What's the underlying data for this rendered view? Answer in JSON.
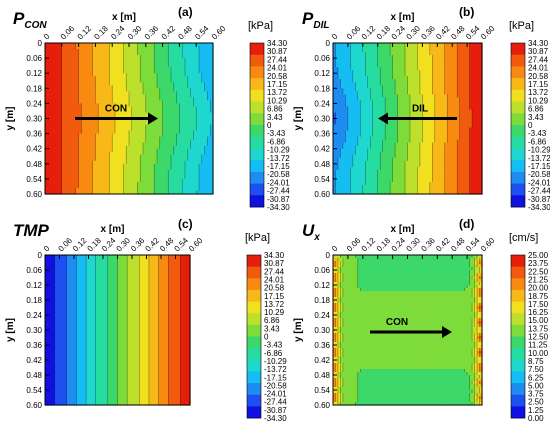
{
  "palette": [
    "#1010e0",
    "#1e4ff0",
    "#1f8cf2",
    "#16bdf2",
    "#1ed8d0",
    "#26dca0",
    "#3cd86a",
    "#7ddc3a",
    "#bde02c",
    "#f0e020",
    "#f8b818",
    "#f88a12",
    "#f25a10",
    "#e61e0c"
  ],
  "chart_data": [
    {
      "type": "heatmap",
      "title_main": "P",
      "title_sub": "CON",
      "panel_label": "(a)",
      "xlabel": "x [m]",
      "ylabel": "y [m]",
      "unit": "[kPa]",
      "x_ticks": [
        "0",
        "0.06",
        "0.12",
        "0.18",
        "0.24",
        "0.30",
        "0.36",
        "0.42",
        "0.48",
        "0.54",
        "0.60"
      ],
      "y_ticks": [
        "0",
        "0.06",
        "0.12",
        "0.18",
        "0.24",
        "0.30",
        "0.36",
        "0.42",
        "0.48",
        "0.54",
        "0.60"
      ],
      "xlim": [
        0,
        0.6
      ],
      "ylim": [
        0,
        0.6
      ],
      "colorbar_ticks": [
        "34.30",
        "30.87",
        "27.44",
        "24.01",
        "20.58",
        "17.15",
        "13.72",
        "10.29",
        "6.86",
        "3.43",
        "0",
        "-3.43",
        "-6.86",
        "-10.29",
        "-13.72",
        "-17.15",
        "-20.58",
        "-24.01",
        "-27.44",
        "-30.87",
        "-34.30"
      ],
      "clim": [
        -34.3,
        34.3
      ],
      "field": "pressure decreasing from about 34 kPa at x = 0 to about -20 kPa at x = 0.60",
      "arrow_label": "CON"
    },
    {
      "type": "heatmap",
      "title_main": "P",
      "title_sub": "DIL",
      "panel_label": "(b)",
      "xlabel": "x [m]",
      "ylabel": "y [m]",
      "unit": "[kPa]",
      "x_ticks": [
        "0",
        "0.06",
        "0.12",
        "0.18",
        "0.24",
        "0.30",
        "0.36",
        "0.42",
        "0.48",
        "0.54",
        "0.60"
      ],
      "y_ticks": [
        "0",
        "0.06",
        "0.12",
        "0.18",
        "0.24",
        "0.30",
        "0.36",
        "0.42",
        "0.48",
        "0.54",
        "0.60"
      ],
      "xlim": [
        0,
        0.6
      ],
      "ylim": [
        0,
        0.6
      ],
      "colorbar_ticks": [
        "34.30",
        "30.87",
        "27.44",
        "24.01",
        "20.58",
        "17.15",
        "13.72",
        "10.29",
        "6.86",
        "3.43",
        "0",
        "-3.43",
        "-6.86",
        "-10.29",
        "-13.72",
        "-17.15",
        "-20.58",
        "-24.01",
        "-27.44",
        "-30.87",
        "-34.30"
      ],
      "clim": [
        -34.3,
        34.3
      ],
      "field": "pressure increasing from about -20 kPa at x = 0 to about 34 kPa at x = 0.60",
      "arrow_label": "DIL"
    },
    {
      "type": "heatmap",
      "title_main": "TMP",
      "title_sub": "",
      "panel_label": "(c)",
      "xlabel": "x [m]",
      "ylabel": "y [m]",
      "unit": "[kPa]",
      "x_ticks": [
        "0",
        "0.06",
        "0.12",
        "0.18",
        "0.24",
        "0.30",
        "0.36",
        "0.42",
        "0.48",
        "0.54",
        "0.60"
      ],
      "y_ticks": [
        "0",
        "0.06",
        "0.12",
        "0.18",
        "0.24",
        "0.30",
        "0.36",
        "0.42",
        "0.48",
        "0.54",
        "0.60"
      ],
      "xlim": [
        0,
        0.6
      ],
      "ylim": [
        0,
        0.6
      ],
      "colorbar_ticks": [
        "34.30",
        "30.87",
        "27.44",
        "24.01",
        "20.58",
        "17.15",
        "13.72",
        "10.29",
        "6.86",
        "3.43",
        "0",
        "-3.43",
        "-6.86",
        "-10.29",
        "-13.72",
        "-17.15",
        "-20.58",
        "-24.01",
        "-27.44",
        "-30.87",
        "-34.30"
      ],
      "clim": [
        -34.3,
        34.3
      ],
      "field": "TMP increasing from about -34 kPa at x = 0 to about 34 kPa at x = 0.60",
      "arrow_label": ""
    },
    {
      "type": "heatmap",
      "title_main": "U",
      "title_sub": "x",
      "panel_label": "(d)",
      "xlabel": "x [m]",
      "ylabel": "y [m]",
      "unit": "[cm/s]",
      "x_ticks": [
        "0",
        "0.06",
        "0.12",
        "0.18",
        "0.24",
        "0.30",
        "0.36",
        "0.42",
        "0.48",
        "0.54",
        "0.60"
      ],
      "y_ticks": [
        "0",
        "0.06",
        "0.12",
        "0.18",
        "0.24",
        "0.30",
        "0.36",
        "0.42",
        "0.48",
        "0.54",
        "0.60"
      ],
      "xlim": [
        0,
        0.6
      ],
      "ylim": [
        0,
        0.6
      ],
      "colorbar_ticks": [
        "25.00",
        "23.75",
        "22.50",
        "21.25",
        "20.00",
        "18.75",
        "17.50",
        "16.25",
        "15.00",
        "13.75",
        "12.50",
        "11.25",
        "10.00",
        "8.75",
        "7.50",
        "6.25",
        "5.00",
        "3.75",
        "2.50",
        "1.25",
        "0.00"
      ],
      "clim": [
        0,
        25
      ],
      "field": "uniform velocity of about 12.5 cm/s with high-velocity spots near the inlets/outlets at x = 0 and x = 0.60",
      "arrow_label": "CON"
    }
  ]
}
